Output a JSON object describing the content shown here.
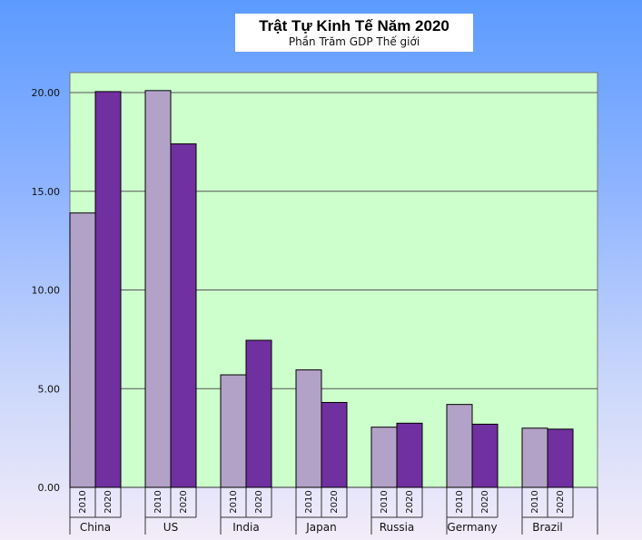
{
  "chart_data": {
    "type": "bar",
    "title": "Trật Tự Kinh Tế Năm 2020",
    "subtitle": "Phần Trăm GDP Thế giới",
    "categories": [
      "China",
      "US",
      "India",
      "Japan",
      "Russia",
      "Germany",
      "Brazil"
    ],
    "series": [
      {
        "name": "2010",
        "values": [
          13.9,
          20.1,
          5.7,
          5.95,
          3.05,
          4.2,
          3.0
        ]
      },
      {
        "name": "2020",
        "values": [
          20.05,
          17.4,
          7.45,
          4.3,
          3.25,
          3.2,
          2.95
        ]
      }
    ],
    "ylim": [
      0,
      21
    ],
    "yticks": [
      "0.00",
      "5.00",
      "10.00",
      "15.00",
      "20.00"
    ],
    "ytick_values": [
      0,
      5,
      10,
      15,
      20
    ],
    "grid": true,
    "colors": {
      "plot_bg": "#ccffcc",
      "series_2010": "#b3a2c8",
      "series_2020": "#7030a0",
      "grid": "#555555"
    }
  }
}
